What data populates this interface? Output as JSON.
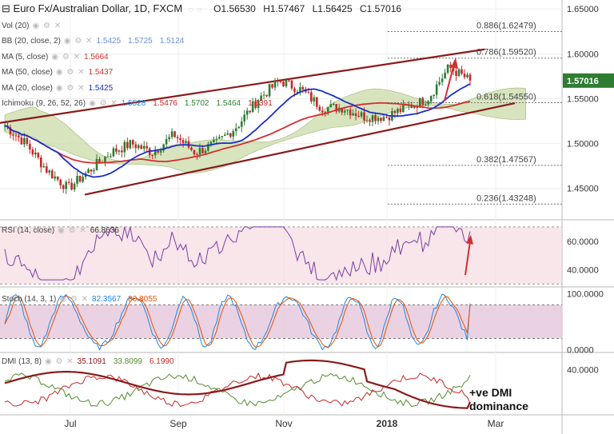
{
  "header": {
    "collapse_glyph": "⊟",
    "symbol": "Euro Fx/Australian Dollar, 1D, FXCM",
    "open": "O1.56530",
    "high": "H1.57467",
    "low": "L1.56425",
    "close": "C1.57016"
  },
  "legends": [
    {
      "name": "Vol (20)",
      "values": []
    },
    {
      "name": "BB (20, close, 2)",
      "values": [
        "1.5425",
        "1.5725",
        "1.5124"
      ]
    },
    {
      "name": "MA (5, close)",
      "values": [
        "1.5664"
      ]
    },
    {
      "name": "MA (50, close)",
      "values": [
        "1.5437"
      ]
    },
    {
      "name": "MA (20, close)",
      "values": [
        "1.5425"
      ]
    },
    {
      "name": "Ichimoku (9, 26, 52, 26)",
      "values": [
        "1.5528",
        "1.5476",
        "1.5702",
        "1.5464",
        "1.5391"
      ]
    },
    {
      "name": "RSI (14, close)",
      "values": [
        "66.8636"
      ]
    },
    {
      "name": "Stoch (14, 3, 1)",
      "values": [
        "82.3567",
        "80.8055"
      ]
    },
    {
      "name": "DMI (13, 8)",
      "values": [
        "35.1091",
        "33.8099",
        "6.1990"
      ]
    }
  ],
  "annotation": {
    "line1": "+ve DMI",
    "line2": "dominance"
  },
  "colors": {
    "up": "#2e7d32",
    "down": "#c62828",
    "channel": "#8b1a1a",
    "ma50": "#d32f2f",
    "ma20": "#1a2fc7",
    "cloud": "#c9dba8",
    "rsi": "#7b3fa6",
    "stoch_k": "#1e88e5",
    "stoch_d": "#e65100",
    "dmi_adx": "#8b1a1a",
    "dmi_plus": "#558b2f",
    "dmi_minus": "#c62828",
    "fib": "#777777",
    "price_badge": "#2e7d32",
    "arrow": "#d32f2f"
  },
  "chart_data": [
    {
      "type": "candlestick",
      "title": "Euro Fx/Australian Dollar, 1D, FXCM",
      "x_ticks": [
        "Jul",
        "Sep",
        "Nov",
        "2018",
        "Mar"
      ],
      "y_ticks": [
        "1.65000",
        "1.60000",
        "1.55000",
        "1.50000",
        "1.45000"
      ],
      "ylim": [
        1.415,
        1.66
      ],
      "last_price": "1.57016",
      "key_closes": [
        1.52,
        1.5,
        1.47,
        1.45,
        1.47,
        1.49,
        1.5,
        1.49,
        1.51,
        1.49,
        1.5,
        1.52,
        1.55,
        1.57,
        1.56,
        1.54,
        1.54,
        1.53,
        1.53,
        1.54,
        1.55,
        1.585,
        1.57
      ],
      "fibonacci": [
        {
          "label": "0.886(1.62479)",
          "value": 1.62479
        },
        {
          "label": "0.786(1.59520)",
          "value": 1.5952
        },
        {
          "label": "0.618(1.54550)",
          "value": 1.5455
        },
        {
          "label": "0.382(1.47567)",
          "value": 1.47567
        },
        {
          "label": "0.236(1.43248)",
          "value": 1.43248
        }
      ],
      "channel": {
        "upper": [
          1.523,
          1.605
        ],
        "lower": [
          1.443,
          1.545
        ]
      }
    },
    {
      "type": "line",
      "name": "RSI (14, close)",
      "y_ticks": [
        "60.0000",
        "40.0000"
      ],
      "ylim": [
        28,
        75
      ],
      "last": 66.8636
    },
    {
      "type": "line",
      "name": "Stoch (14, 3, 1)",
      "y_ticks": [
        "100.0000",
        "0.0000"
      ],
      "ylim": [
        -5,
        112
      ],
      "band": [
        20,
        80
      ],
      "last_k": 82.3567,
      "last_d": 80.8055
    },
    {
      "type": "line",
      "name": "DMI (13, 8)",
      "y_ticks": [
        "40.0000"
      ],
      "ylim": [
        0,
        55
      ],
      "last_adx": 6.199,
      "last_plus": 35.1091,
      "last_minus": 33.8099
    }
  ]
}
